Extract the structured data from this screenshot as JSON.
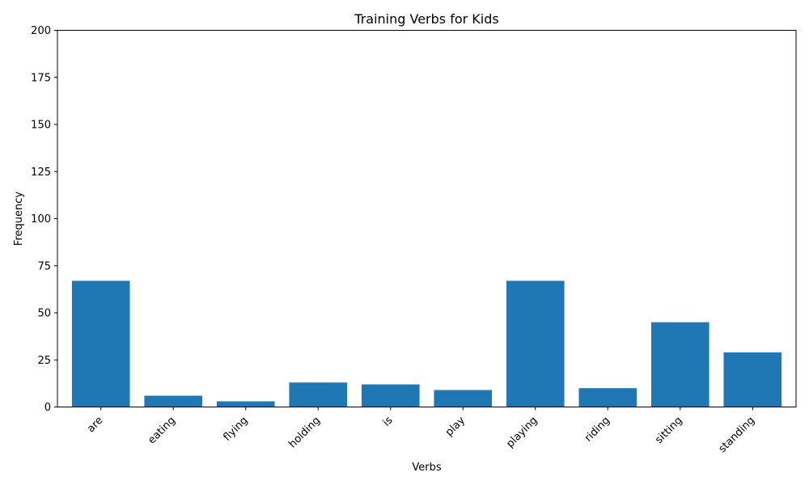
{
  "chart_data": {
    "type": "bar",
    "title": "Training Verbs for Kids",
    "xlabel": "Verbs",
    "ylabel": "Frequency",
    "categories": [
      "are",
      "eating",
      "flying",
      "holding",
      "is",
      "play",
      "playing",
      "riding",
      "sitting",
      "standing"
    ],
    "values": [
      67,
      6,
      3,
      13,
      12,
      9,
      67,
      10,
      45,
      29
    ],
    "ylim": [
      0,
      200
    ],
    "yticks": [
      0,
      25,
      50,
      75,
      100,
      125,
      150,
      175,
      200
    ],
    "grid": false,
    "legend": "none",
    "bar_color": "#1f77b4"
  }
}
